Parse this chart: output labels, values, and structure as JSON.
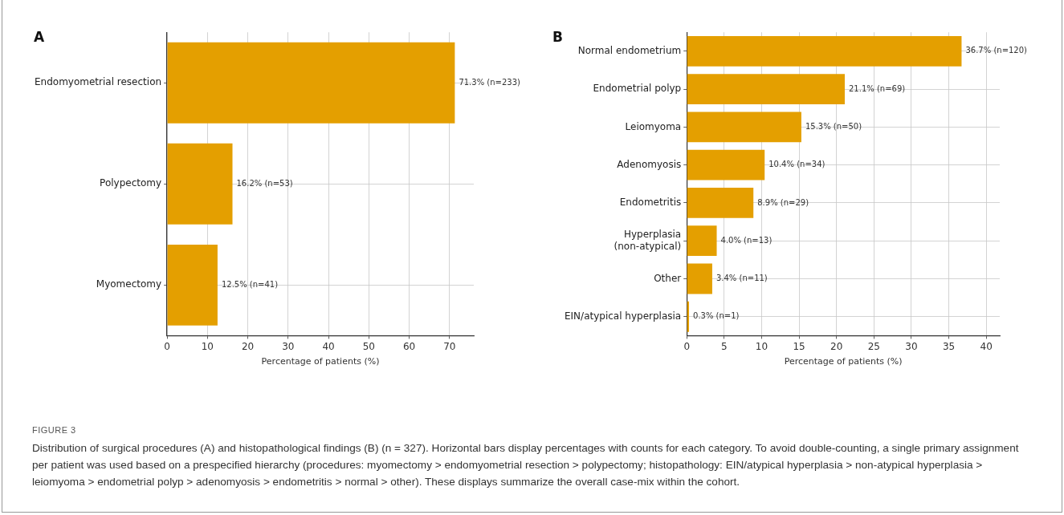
{
  "chart_data": [
    {
      "type": "bar",
      "title": "A",
      "orientation": "horizontal",
      "categories": [
        "Endomyometrial resection",
        "Polypectomy",
        "Myomectomy"
      ],
      "values": [
        71.3,
        16.2,
        12.5
      ],
      "value_labels": [
        "71.3% (n=233)",
        "16.2% (n=53)",
        "12.5% (n=41)"
      ],
      "color": "#e49f00",
      "xlabel": "Percentage of patients (%)",
      "xlim": [
        0,
        76
      ],
      "xticks": [
        0,
        10,
        20,
        30,
        40,
        50,
        60,
        70
      ],
      "grid": true,
      "legend": false
    },
    {
      "type": "bar",
      "title": "B",
      "orientation": "horizontal",
      "categories": [
        "Normal endometrium",
        "Endometrial polyp",
        "Leiomyoma",
        "Adenomyosis",
        "Endometritis",
        "Hyperplasia\n(non-atypical)",
        "Other",
        "EIN/atypical hyperplasia"
      ],
      "values": [
        36.7,
        21.1,
        15.3,
        10.4,
        8.9,
        4.0,
        3.4,
        0.3
      ],
      "value_labels": [
        "36.7% (n=120)",
        "21.1% (n=69)",
        "15.3% (n=50)",
        "10.4% (n=34)",
        "8.9% (n=29)",
        "4.0% (n=13)",
        "3.4% (n=11)",
        "0.3% (n=1)"
      ],
      "color": "#e49f00",
      "xlabel": "Percentage of patients (%)",
      "xlim": [
        0,
        41.8
      ],
      "xticks": [
        0,
        5,
        10,
        15,
        20,
        25,
        30,
        35,
        40
      ],
      "grid": true,
      "legend": false,
      "annotations": [
        "FIGURE 3",
        "Distribution of surgical procedures (A) and histopathological findings (B) (n = 327). Horizontal bars display percentages with counts for each category. To avoid double-counting, a single primary assignment per patient was used based on a prespecified hierarchy (procedures: myomectomy > endomyometrial resection > polypectomy; histopathology: EIN/atypical hyperplasia > non-atypical hyperplasia > leiomyoma > endometrial polyp > adenomyosis > endometritis > normal > other). These displays summarize the overall case-mix within the cohort."
      ]
    }
  ]
}
